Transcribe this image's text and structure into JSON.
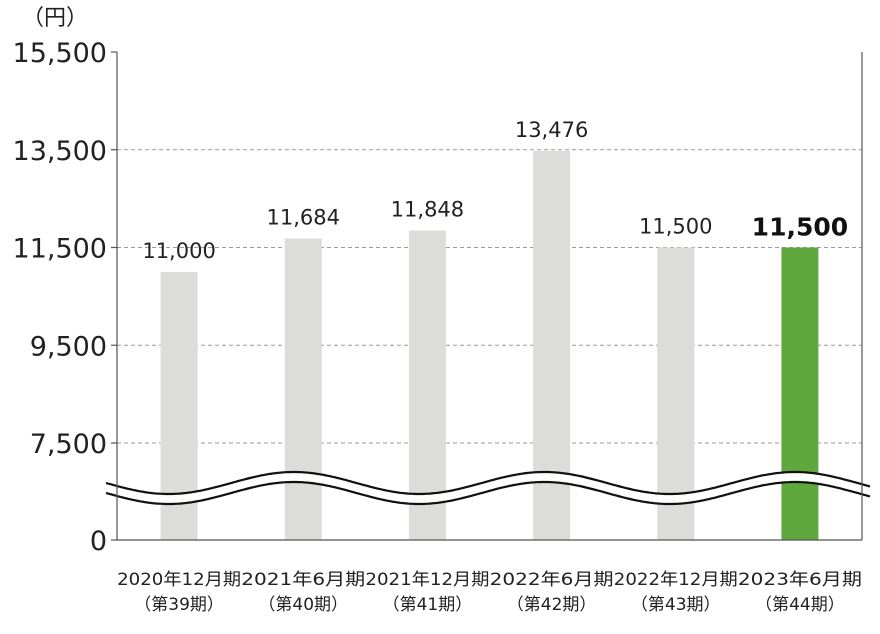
{
  "chart_data": {
    "type": "bar",
    "unit_label": "（円）",
    "categories": [
      [
        "2020年12月期",
        "（第39期）"
      ],
      [
        "2021年6月期",
        "（第40期）"
      ],
      [
        "2021年12月期",
        "（第41期）"
      ],
      [
        "2022年6月期",
        "（第42期）"
      ],
      [
        "2022年12月期",
        "（第43期）"
      ],
      [
        "2023年6月期",
        "（第44期）"
      ]
    ],
    "values": [
      11000,
      11684,
      11848,
      13476,
      11500,
      11500
    ],
    "value_labels": [
      "11,000",
      "11,684",
      "11,848",
      "13,476",
      "11,500",
      "11,500"
    ],
    "highlight_index": 5,
    "y_ticks": [
      {
        "value": 0,
        "label": "0"
      },
      {
        "value": 7500,
        "label": "7,500"
      },
      {
        "value": 9500,
        "label": "9,500"
      },
      {
        "value": 11500,
        "label": "11,500"
      },
      {
        "value": 13500,
        "label": "13,500"
      },
      {
        "value": 15500,
        "label": "15,500"
      }
    ],
    "axis_break": true,
    "grid": "dashed horizontal",
    "colors": {
      "bar": "#dcdcdb",
      "highlight": "#5ea83e",
      "grid": "#9a9a9a",
      "axis": "#555555"
    }
  }
}
